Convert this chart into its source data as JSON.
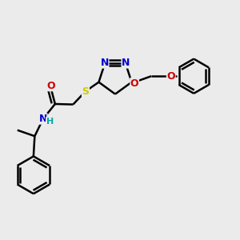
{
  "bg_color": "#ebebeb",
  "atom_colors": {
    "C": "#000000",
    "N": "#0000cc",
    "O": "#cc0000",
    "S": "#cccc00",
    "H": "#00aaaa"
  },
  "bond_color": "#000000",
  "bond_width": 1.8,
  "figsize": [
    3.0,
    3.0
  ],
  "dpi": 100
}
